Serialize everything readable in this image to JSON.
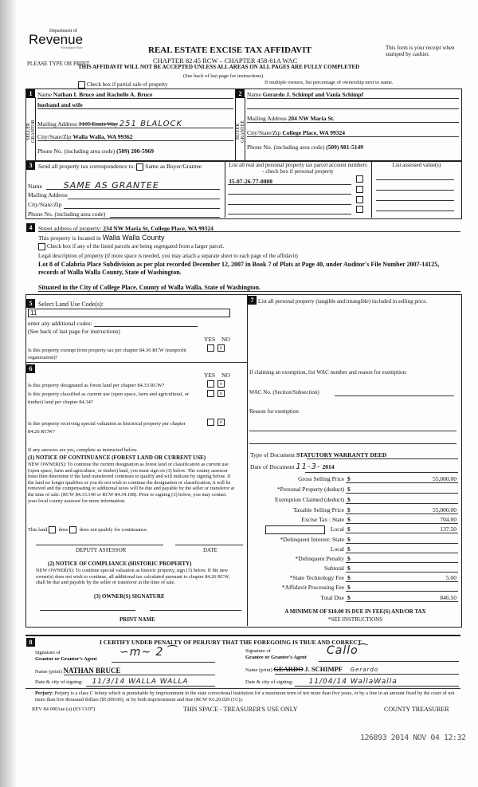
{
  "header": {
    "logo_top": "Department of",
    "logo_main": "Revenue",
    "logo_sub": "Washington State",
    "please": "PLEASE TYPE OR PRINT",
    "title": "REAL ESTATE EXCISE TAX AFFIDAVIT",
    "chapter": "CHAPTER 82.45 RCW – CHAPTER 458-61A WAC",
    "warning": "THIS AFFIDAVIT WILL NOT BE ACCEPTED UNLESS ALL AREAS ON ALL PAGES ARE FULLY COMPLETED",
    "see_back": "(See back of last page for instructions)",
    "receipt": "This form is your receipt when stamped by cashier.",
    "partial_sale": "Check box if partial sale of property",
    "multiple_owners": "If multiple owners, list percentage of ownership next to name."
  },
  "seller": {
    "num": "1",
    "side": "SELLER GRANTOR",
    "name_label": "Name",
    "name": "Nathan I. Bruce and Rachelle A. Bruce",
    "name2": "husband and wife",
    "mail_label": "Mailing Address",
    "mail_struck": "3105 Ennis Way",
    "mail": "251 BLALOCK",
    "city_label": "City/State/Zip",
    "city": "Walla Walla, WA 99362",
    "phone_label": "Phone No. (including area code)",
    "phone": "(509) 200-5969"
  },
  "buyer": {
    "num": "2",
    "side": "BUYER GRANTEE",
    "name_label": "Name",
    "name": "Gerardo J. Schimpf and Vania Schimpf",
    "mail_label": "Mailing Address",
    "mail": "204 NW Maria St.",
    "city_label": "City/State/Zip",
    "city": "College Place, WA 99324",
    "phone_label": "Phone No. (including area code)",
    "phone": "(509) 981-5149"
  },
  "section3": {
    "num": "3",
    "send_label": "Send all property tax correspondence to:",
    "same_label": "Same as Buyer/Grantee",
    "name_label": "Name",
    "name": "SAME AS GRANTEE",
    "mail_label": "Mailing Address",
    "city_label": "City/State/Zip",
    "phone_label": "Phone No. (including area code)",
    "parcel_header": "List all real and personal property tax parcel account numbers - check box if personal property",
    "assessed_header": "List assessed value(s)",
    "parcel": "35-07-26-77-0008"
  },
  "section4": {
    "num": "4",
    "street_label": "Street address of property:",
    "street": "234 NW Maria St, College Place, WA  99324",
    "county_label": "This property is located in",
    "county": "Walla Walla County",
    "segregated": "Check box if any of the listed parcels are being segregated from a larger parcel.",
    "legal_label": "Legal description of property (if more space is needed, you may attach a separate sheet to each page of the affidavit)",
    "legal": "Lot 8 of Calabria Place Subdivision as per plat recorded December 12, 2007 in Book 7 of Plats at Page 40, under Auditor's File Number 2007-14125, records of Walla Walla County, State of Washington.",
    "situated": "Situated in the City of College Place, County of Walla Walla, State of Washington."
  },
  "section5": {
    "num": "5",
    "land_use_label": "Select Land Use Code(s):",
    "land_use": "11",
    "additional": "enter any additional codes:",
    "see_back": "(See back of last page for instructions)",
    "yes": "YES",
    "no": "NO",
    "exempt_q": "Is this property exempt from property tax per chapter 84.36 RCW (nonprofit organization)?"
  },
  "section6": {
    "num": "6",
    "q1": "Is this property designated as forest land per chapter 84.33 RCW?",
    "q2": "Is this property classified as current use (open space, farm and agricultural, or timber) land per chapter 84.34?",
    "q3": "Is this property receiving special valuation as historical property per chapter 84.26 RCW?",
    "if_yes": "If any answers are yes, complete as instructed below.",
    "n1_title": "(1) NOTICE OF CONTINUANCE (FOREST LAND OR CURRENT USE)",
    "n1_text": "NEW OWNER(S): To continue the current designation as forest land or classification as current use (open space, farm and agriculture, or timber) land, you must sign on (3) below. The county assessor must then determine if the land transferred continues to qualify and will indicate by signing below. If the land no longer qualifies or you do not wish to continue the designation or classification, it will be removed and the compensating or additional taxes will be due and payable by the seller or transferor at the time of sale. (RCW 84.33.140 or RCW 84.34.108). Prior to signing (3) below, you may contact your local county assessor for more information.",
    "this_land": "This land",
    "does": "does",
    "does_not": "does not  qualify for continuance.",
    "deputy": "DEPUTY ASSESSOR",
    "date": "DATE",
    "n2_title": "(2) NOTICE OF COMPLIANCE (HISTORIC PROPERTY)",
    "n2_text": "NEW OWNER(S): To continue special valuation as historic property, sign (3) below. If the new owner(s) does not wish to continue, all additional tax calculated pursuant to chapter 84.26 RCW, shall be due and payable by the seller or transferor at the time of sale.",
    "owner_sig": "(3) OWNER(S) SIGNATURE",
    "print_name": "PRINT NAME"
  },
  "section7": {
    "num": "7",
    "personal": "List all personal property (tangible and intangible) included in selling price.",
    "exemption": "If claiming an exemption, list WAC number and reason for exemption:",
    "wac": "WAC No. (Section/Subsection)",
    "reason": "Reason for exemption",
    "doc_type_label": "Type of Document",
    "doc_type": "STATUTORY  WARRANTY  DEED",
    "doc_date_label": "Date of Document",
    "doc_date_hand": "11-3-",
    "doc_date_year": "2014",
    "rows": [
      {
        "label": "Gross Selling Price",
        "value": "55,000.00"
      },
      {
        "label": "*Personal Property (deduct)",
        "value": ""
      },
      {
        "label": "Exemption Claimed (deduct)",
        "value": ""
      },
      {
        "label": "Taxable Selling Price",
        "value": "55,000.00"
      },
      {
        "label": "Excise Tax : State",
        "value": "704.00"
      },
      {
        "label": "Local",
        "value": "137.50"
      },
      {
        "label": "*Delinquent Interest:  State",
        "value": ""
      },
      {
        "label": "Local",
        "value": ""
      },
      {
        "label": "*Delinquent Penalty",
        "value": ""
      },
      {
        "label": "Subtotal",
        "value": ""
      },
      {
        "label": "*State Technology Fee",
        "value": "5.00"
      },
      {
        "label": "*Affidavit Processing Fee",
        "value": ""
      },
      {
        "label": "Total Due",
        "value": "846.50"
      }
    ],
    "dollar": "$",
    "minimum": "A MINIMUM OF $10.00 IS DUE IN FEE(S) AND/OR TAX",
    "see_instr": "*SEE INSTRUCTIONS"
  },
  "section8": {
    "num": "8",
    "certify": "I CERTIFY UNDER PENALTY OF PERJURY THAT THE FOREGOING IS TRUE AND CORRECT.",
    "sig_of": "Signature of",
    "grantor_agent": "Grantor or Grantor's Agent",
    "grantee_agent": "Grantee or Grantee's Agent",
    "name_print": "Name (print)",
    "grantor_name": "NATHAN  BRUCE",
    "grantee_struck": "GEARDO",
    "grantee_name": "J. SCHIMPF",
    "grantee_correction": "Gerardo",
    "date_city": "Date & city of signing:",
    "grantor_date": "11/3/14  WALLA WALLA",
    "grantee_date": "11/04/14  WallaWalla"
  },
  "footer": {
    "perjury_label": "Perjury:",
    "perjury": "Perjury is a class C felony which is punishable by imprisonment in the state correctional institution for a maximum term of not more than five years, or by a fine in an amount fixed by the court of not more than five thousand dollars ($5,000.00), or by both imprisonment and fine (RCW 9A.20.020 (1C)).",
    "rev": "REV 84 0001ae (a) (03/13/07)",
    "treasurer_space": "THIS SPACE - TREASURER'S USE ONLY",
    "county_treasurer": "COUNTY TREASURER",
    "stamp": "126893 2014 NOV 04 12:32"
  }
}
